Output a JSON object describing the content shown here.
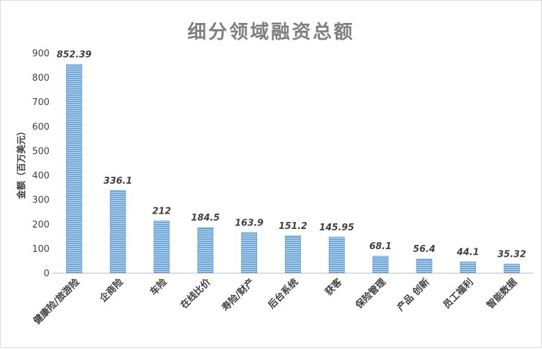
{
  "chart_data": {
    "type": "bar",
    "title": "细分领域融资总额",
    "ylabel": "金额（百万美元）",
    "xlabel": "",
    "ylim": [
      0,
      900
    ],
    "yticks": [
      0,
      100,
      200,
      300,
      400,
      500,
      600,
      700,
      800,
      900
    ],
    "grid": false,
    "legend": "none",
    "bar_color": "#5b9bd5",
    "categories": [
      "健康险/旅游险",
      "企商险",
      "车险",
      "在线比价",
      "寿险/财产",
      "后台系统",
      "获客",
      "保险管理",
      "产品 创新",
      "员工福利",
      "智能数据"
    ],
    "values": [
      852.39,
      336.1,
      212,
      184.5,
      163.9,
      151.2,
      145.95,
      68.1,
      56.4,
      44.1,
      35.32
    ],
    "data_labels": [
      "852.39",
      "336.1",
      "212",
      "184.5",
      "163.9",
      "151.2",
      "145.95",
      "68.1",
      "56.4",
      "44.1",
      "35.32"
    ]
  }
}
